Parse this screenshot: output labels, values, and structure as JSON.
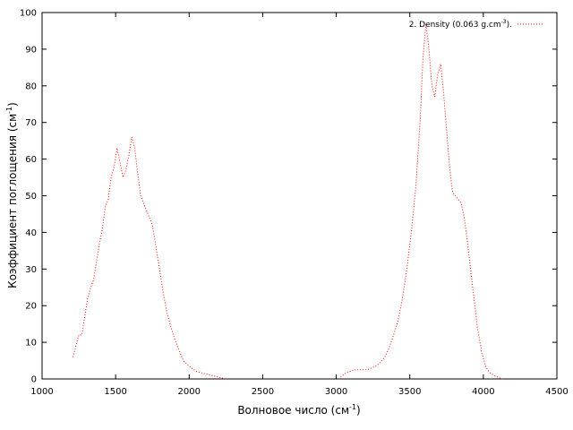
{
  "chart_data": {
    "type": "line",
    "title": "",
    "xlabel": "Волновое число (см",
    "xlabel_sup": "-1",
    "xlabel_end": ")",
    "ylabel": "Коэффициент поглощения (см",
    "ylabel_sup": "-1",
    "ylabel_end": ")",
    "xlim": [
      1000,
      4500
    ],
    "ylim": [
      0,
      100
    ],
    "xticks": [
      "1000",
      "1500",
      "2000",
      "2500",
      "3000",
      "3500",
      "4000",
      "4500"
    ],
    "yticks": [
      "0",
      "10",
      "20",
      "30",
      "40",
      "50",
      "60",
      "70",
      "80",
      "90",
      "100"
    ],
    "grid": false,
    "legend_position": "top-right",
    "series": [
      {
        "name": "2. Density (0.063 g.cm",
        "name_sup": "-3",
        "name_end": ").",
        "color": "#ff0000",
        "style": "dotted",
        "segments": [
          {
            "x": [
              1210,
              1230,
              1250,
              1270,
              1290,
              1310,
              1330,
              1350,
              1370,
              1390,
              1410,
              1430,
              1450,
              1470,
              1490,
              1510,
              1530,
              1550,
              1570,
              1590,
              1610,
              1630,
              1650,
              1670,
              1690,
              1710,
              1730,
              1750,
              1770,
              1790,
              1810,
              1830,
              1850,
              1870,
              1900,
              1930,
              1960,
              2000,
              2050,
              2100,
              2150,
              2200,
              2250
            ],
            "y": [
              6,
              9,
              12,
              12,
              17,
              22,
              25,
              27,
              32,
              37,
              41,
              47,
              49,
              55,
              58,
              63,
              59,
              55,
              57,
              61,
              66,
              63,
              56,
              50,
              48,
              46,
              44,
              42,
              37,
              32,
              27,
              22,
              18,
              15,
              11,
              8,
              5,
              3.5,
              2,
              1.5,
              1,
              0.5,
              0
            ]
          },
          {
            "x": [
              3030,
              3060,
              3090,
              3120,
              3150,
              3180,
              3210,
              3240,
              3270,
              3300,
              3330,
              3360,
              3390,
              3420,
              3450,
              3480,
              3510,
              3540,
              3570,
              3590,
              3610,
              3630,
              3650,
              3670,
              3690,
              3710,
              3730,
              3750,
              3770,
              3790,
              3810,
              3830,
              3850,
              3870,
              3890,
              3910,
              3930,
              3960,
              3990,
              4020,
              4050,
              4080,
              4110,
              4130
            ],
            "y": [
              0.5,
              1.5,
              2,
              2.5,
              2.5,
              2.5,
              2.5,
              3,
              3.5,
              4.5,
              6,
              8.5,
              12,
              16,
              22,
              30,
              40,
              52,
              70,
              88,
              97,
              90,
              80,
              77,
              83,
              86,
              78,
              68,
              58,
              51,
              50,
              49,
              48,
              44,
              38,
              31,
              24,
              14,
              7,
              3,
              1.5,
              0.8,
              0.3,
              0
            ]
          }
        ]
      }
    ]
  }
}
